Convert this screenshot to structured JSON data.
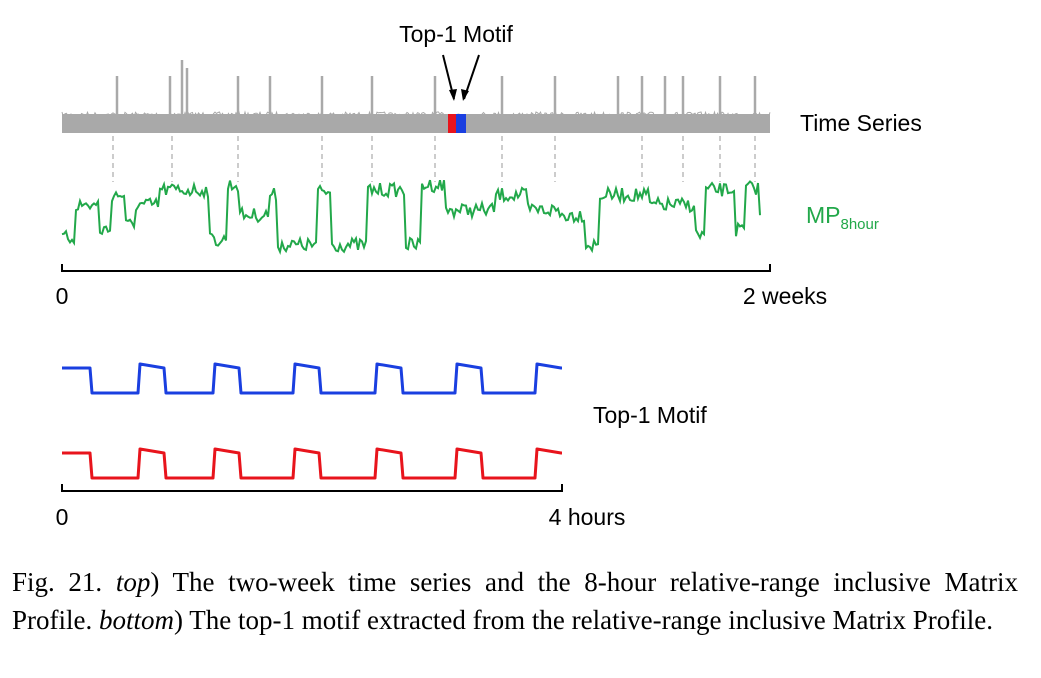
{
  "figure": {
    "top": {
      "annotation": "Top-1 Motif",
      "series_label": "Time Series",
      "mp_label": "MP",
      "mp_subscript": "8hour",
      "axis_start": "0",
      "axis_end": "2 weeks"
    },
    "bottom": {
      "label": "Top-1 Motif",
      "axis_start": "0",
      "axis_end": "4 hours"
    },
    "caption": {
      "number": "Fig. 21.",
      "parts": [
        "top",
        ") The two-week time series and the 8-hour relative-range inclusive Matrix Profile.",
        "bottom",
        ") The top-1 motif extracted from the relative-range inclusive Matrix Profile."
      ]
    }
  }
}
